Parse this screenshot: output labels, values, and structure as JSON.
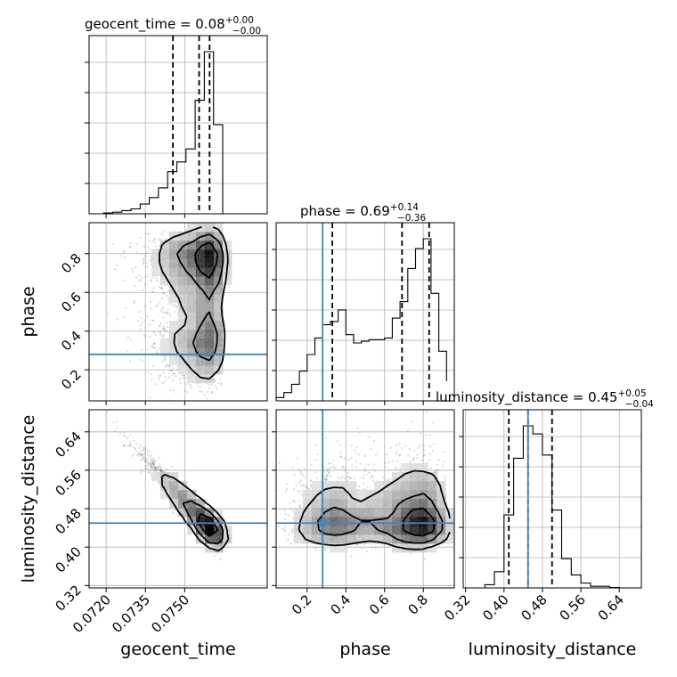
{
  "chart_data": {
    "type": "corner",
    "parameters": [
      "geocent_time",
      "phase",
      "luminosity_distance"
    ],
    "titles": [
      {
        "param": "geocent_time",
        "median": "0.08",
        "plus": "+0.00",
        "minus": "−0.00"
      },
      {
        "param": "phase",
        "median": "0.69",
        "plus": "+0.14",
        "minus": "−0.36"
      },
      {
        "param": "luminosity_distance",
        "median": "0.45",
        "plus": "+0.05",
        "minus": "−0.04"
      }
    ],
    "ranges": {
      "geocent_time": [
        0.07135,
        0.07815
      ],
      "phase": [
        0.04,
        0.96
      ],
      "luminosity_distance": [
        0.315,
        0.686
      ]
    },
    "ticks": {
      "geocent_time": {
        "values": [
          0.072,
          0.0735,
          0.075
        ],
        "labels": [
          "0.0720",
          "0.0735",
          "0.0750"
        ]
      },
      "phase": {
        "values": [
          0.2,
          0.4,
          0.6,
          0.8
        ],
        "labels": [
          "0.2",
          "0.4",
          "0.6",
          "0.8"
        ]
      },
      "luminosity_distance": {
        "values": [
          0.32,
          0.4,
          0.48,
          0.56,
          0.64
        ],
        "labels": [
          "0.32",
          "0.40",
          "0.48",
          "0.56",
          "0.64"
        ]
      }
    },
    "truths": {
      "geocent_time": null,
      "phase": 0.28,
      "luminosity_distance": 0.45
    },
    "quantiles": {
      "geocent_time": [
        0.07455,
        0.07555,
        0.07595
      ],
      "phase": [
        0.33,
        0.69,
        0.83
      ],
      "luminosity_distance": [
        0.41,
        0.45,
        0.5
      ]
    },
    "histograms": {
      "geocent_time": {
        "edges": [
          0.0719,
          0.07225,
          0.0726,
          0.07295,
          0.0733,
          0.07365,
          0.074,
          0.07435,
          0.0747,
          0.07505,
          0.0754,
          0.07575,
          0.0761,
          0.07645
        ],
        "counts": [
          0.5,
          1,
          2,
          3,
          6,
          10,
          16,
          26,
          32,
          40,
          70,
          100,
          55,
          0
        ]
      },
      "phase": {
        "edges": [
          0.04,
          0.08,
          0.12,
          0.16,
          0.2,
          0.24,
          0.28,
          0.32,
          0.36,
          0.4,
          0.44,
          0.48,
          0.52,
          0.56,
          0.6,
          0.64,
          0.68,
          0.72,
          0.76,
          0.8,
          0.84,
          0.88,
          0.92
        ],
        "counts": [
          2,
          5,
          10,
          18,
          28,
          38,
          46,
          48,
          55,
          40,
          35,
          36,
          37,
          37,
          38,
          50,
          60,
          80,
          92,
          98,
          65,
          30,
          12
        ]
      },
      "luminosity_distance": {
        "edges": [
          0.36,
          0.38,
          0.4,
          0.42,
          0.44,
          0.46,
          0.48,
          0.5,
          0.52,
          0.54,
          0.56,
          0.58,
          0.6,
          0.62,
          0.64
        ],
        "counts": [
          2,
          10,
          45,
          80,
          100,
          95,
          82,
          48,
          18,
          8,
          3,
          1,
          1,
          0.3
        ]
      }
    },
    "grid": true
  }
}
